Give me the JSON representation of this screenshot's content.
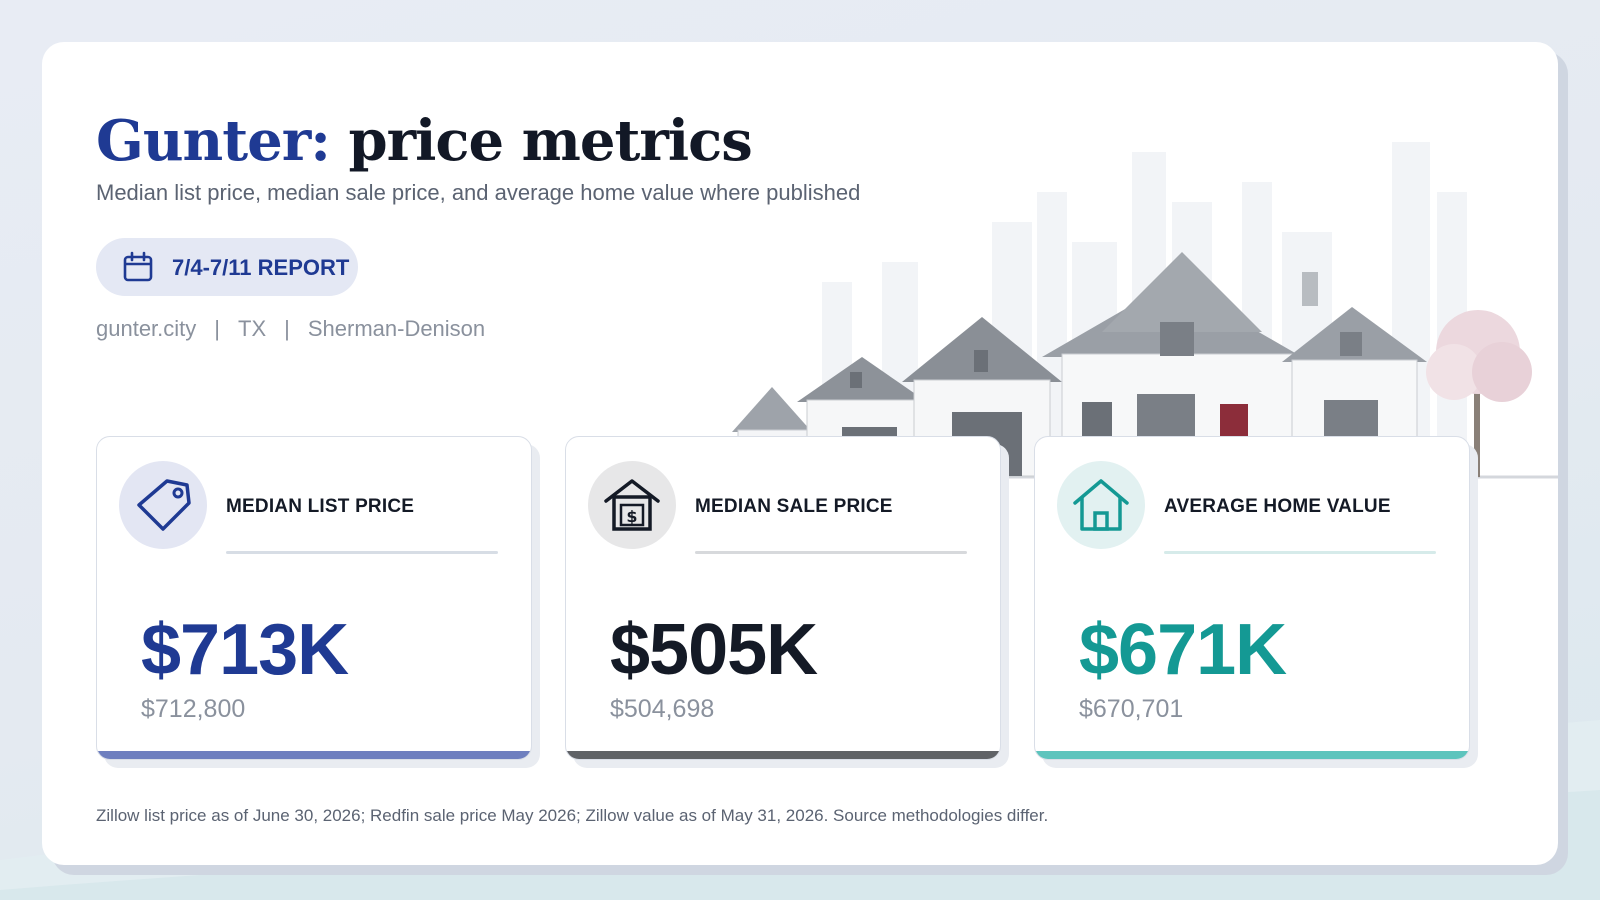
{
  "header": {
    "title_accent": "Gunter:",
    "title_rest": "price metrics",
    "subtitle": "Median list price, median sale price, and average home value where published",
    "report_label": "7/4-7/11 REPORT"
  },
  "meta": {
    "site": "gunter.city",
    "state": "TX",
    "metro": "Sherman-Denison",
    "separator": "|"
  },
  "metrics": [
    {
      "label": "MEDIAN LIST PRICE",
      "value": "$713K",
      "exact": "$712,800",
      "icon": "price-tag-icon",
      "color": "#1f3a93",
      "bar_color": "#6e7fbf",
      "rule_color": "#d7dde5",
      "circle_color": "#e3e6f3"
    },
    {
      "label": "MEDIAN SALE PRICE",
      "value": "$505K",
      "exact": "$504,698",
      "icon": "house-dollar-icon",
      "color": "#141a26",
      "bar_color": "#5f6266",
      "rule_color": "#d7d9dc",
      "circle_color": "#e7e7e8"
    },
    {
      "label": "AVERAGE HOME VALUE",
      "value": "$671K",
      "exact": "$670,701",
      "icon": "home-icon",
      "color": "#149994",
      "bar_color": "#5dc4bd",
      "rule_color": "#d6ebea",
      "circle_color": "#e2f1f1"
    }
  ],
  "footnote": "Zillow list price as of June 30, 2026; Redfin sale price May 2026; Zillow value as of May 31, 2026. Source methodologies differ."
}
